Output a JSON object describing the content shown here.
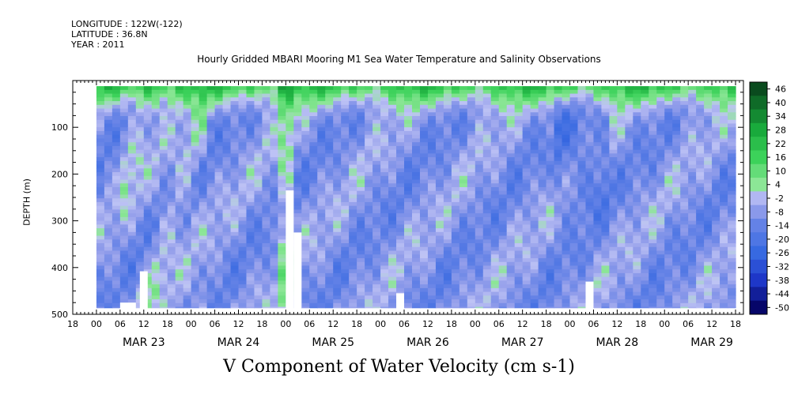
{
  "header": {
    "longitude": "LONGITUDE : 122W(-122)",
    "latitude": "LATITUDE : 36.8N",
    "year": "YEAR : 2011"
  },
  "chart_data": {
    "type": "heatmap",
    "title": "Hourly Gridded MBARI Mooring M1 Sea Water Temperature and Salinity Observations",
    "xlabel": "V Component of Water Velocity (cm s-1)",
    "ylabel": "DEPTH (m)",
    "y_range": [
      0,
      500
    ],
    "y_inverted": true,
    "y_ticks": [
      100,
      200,
      300,
      400,
      500
    ],
    "x_range": [
      "2011-03-22 18:00",
      "2011-03-29 20:00"
    ],
    "x_hour_ticks": [
      "00",
      "06",
      "12",
      "18"
    ],
    "dates": [
      "MAR 23",
      "MAR 24",
      "MAR 25",
      "MAR 26",
      "MAR 27",
      "MAR 28",
      "MAR 29"
    ],
    "colorbar": {
      "labels": [
        "46",
        "40",
        "34",
        "28",
        "22",
        "16",
        "10",
        "4",
        "-2",
        "-8",
        "-14",
        "-20",
        "-26",
        "-32",
        "-38",
        "-44",
        "-50"
      ],
      "range": [
        -50,
        46
      ],
      "low_color": "#0a0a6e",
      "high_color": "#0a4a1e"
    },
    "data_depth_range": [
      12,
      486
    ]
  }
}
